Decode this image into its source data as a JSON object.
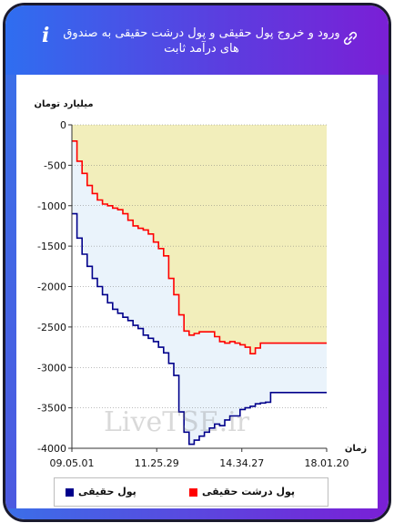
{
  "header": {
    "title": "ورود و خروج پول حقیقی و پول درشت حقیقی به صندوق های درآمد ثابت"
  },
  "watermark": "LiveTSE.ir",
  "colors": {
    "header_start": "#2f6ef0",
    "header_end": "#7a1fd6",
    "series_real": "#00008b",
    "series_big": "#ff0000",
    "fill_top": "#f2eebb",
    "fill_between": "#eaf3fb"
  },
  "chart_data": {
    "type": "line",
    "ylabel": "میلیارد تومان",
    "xlabel": "زمان",
    "ylim": [
      -4000,
      0
    ],
    "yticks": [
      "0",
      "-500",
      "-1000",
      "-1500",
      "-2000",
      "-2500",
      "-3000",
      "-3500",
      "-4000"
    ],
    "ytick_values": [
      0,
      -500,
      -1000,
      -1500,
      -2000,
      -2500,
      -3000,
      -3500,
      -4000
    ],
    "xlim": [
      0,
      100
    ],
    "xticks": [
      "09.05.01",
      "11.25.29",
      "14.34.27",
      "18.01.20"
    ],
    "xtick_positions": [
      0,
      33.3,
      66.7,
      100
    ],
    "grid": true,
    "legend_position": "bottom",
    "series": [
      {
        "name": "پول حقیقی",
        "color": "#00008b",
        "x": [
          0,
          2,
          4,
          6,
          8,
          10,
          12,
          14,
          16,
          18,
          20,
          22,
          24,
          26,
          28,
          30,
          32,
          34,
          36,
          38,
          40,
          42,
          44,
          46,
          48,
          50,
          52,
          54,
          56,
          58,
          60,
          62,
          64,
          66,
          68,
          70,
          72,
          74,
          76,
          78,
          80,
          85,
          90,
          95,
          100
        ],
        "values": [
          -1100,
          -1400,
          -1600,
          -1750,
          -1900,
          -2000,
          -2100,
          -2200,
          -2280,
          -2330,
          -2380,
          -2420,
          -2480,
          -2520,
          -2600,
          -2640,
          -2680,
          -2750,
          -2820,
          -2950,
          -3100,
          -3550,
          -3800,
          -3950,
          -3900,
          -3850,
          -3800,
          -3750,
          -3700,
          -3720,
          -3650,
          -3600,
          -3600,
          -3520,
          -3500,
          -3480,
          -3450,
          -3440,
          -3430,
          -3310,
          -3310,
          -3310,
          -3310,
          -3310,
          -3310
        ]
      },
      {
        "name": "پول درشت حقیقی",
        "color": "#ff0000",
        "x": [
          0,
          2,
          4,
          6,
          8,
          10,
          12,
          14,
          16,
          18,
          20,
          22,
          24,
          26,
          28,
          30,
          32,
          34,
          36,
          38,
          40,
          42,
          44,
          46,
          48,
          50,
          52,
          54,
          56,
          58,
          60,
          62,
          64,
          66,
          68,
          70,
          72,
          74,
          76,
          78,
          80,
          85,
          90,
          95,
          100
        ],
        "values": [
          -200,
          -450,
          -600,
          -750,
          -850,
          -930,
          -980,
          -1000,
          -1030,
          -1050,
          -1100,
          -1180,
          -1250,
          -1280,
          -1300,
          -1350,
          -1450,
          -1530,
          -1620,
          -1900,
          -2100,
          -2350,
          -2550,
          -2600,
          -2580,
          -2560,
          -2560,
          -2560,
          -2620,
          -2680,
          -2700,
          -2680,
          -2700,
          -2720,
          -2750,
          -2830,
          -2760,
          -2700,
          -2700,
          -2700,
          -2700,
          -2700,
          -2700,
          -2700,
          -2700
        ]
      }
    ]
  }
}
